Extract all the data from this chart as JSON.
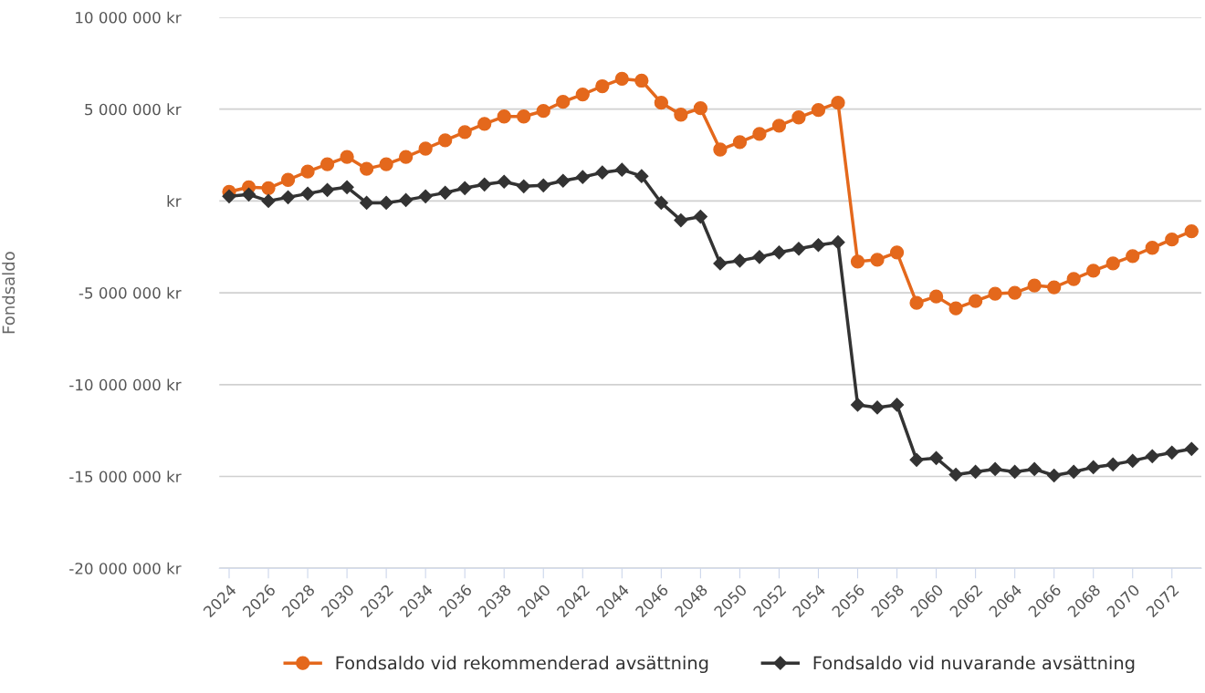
{
  "chart_data": {
    "type": "line",
    "ylabel": "Fondsaldo",
    "categories": [
      "2024",
      null,
      "2026",
      null,
      "2028",
      null,
      "2030",
      null,
      "2032",
      null,
      "2034",
      null,
      "2036",
      null,
      "2038",
      null,
      "2040",
      null,
      "2042",
      null,
      "2044",
      null,
      "2046",
      null,
      "2048",
      null,
      "2050",
      null,
      "2052",
      null,
      "2054",
      null,
      "2056",
      null,
      "2058",
      null,
      "2060",
      null,
      "2062",
      null,
      "2064",
      null,
      "2066",
      null,
      "2068",
      null,
      "2070",
      null,
      "2072",
      null
    ],
    "series": [
      {
        "name": "Fondsaldo vid rekommenderad avsättning",
        "color": "#e4681c",
        "marker": "circle",
        "values": [
          500000,
          750000,
          700000,
          1150000,
          1600000,
          2000000,
          2400000,
          1750000,
          2000000,
          2400000,
          2850000,
          3300000,
          3750000,
          4200000,
          4600000,
          4600000,
          4900000,
          5400000,
          5800000,
          6250000,
          6650000,
          6550000,
          5350000,
          4700000,
          5050000,
          2800000,
          3200000,
          3650000,
          4100000,
          4550000,
          4950000,
          5350000,
          -3300000,
          -3200000,
          -2800000,
          -5550000,
          -5200000,
          -5850000,
          -5450000,
          -5050000,
          -5000000,
          -4600000,
          -4700000,
          -4250000,
          -3800000,
          -3400000,
          -3000000,
          -2550000,
          -2100000,
          -1650000
        ]
      },
      {
        "name": "Fondsaldo vid nuvarande avsättning",
        "color": "#333333",
        "marker": "diamond",
        "values": [
          250000,
          350000,
          0,
          200000,
          400000,
          600000,
          750000,
          -100000,
          -100000,
          50000,
          250000,
          450000,
          700000,
          900000,
          1050000,
          800000,
          850000,
          1100000,
          1300000,
          1550000,
          1700000,
          1350000,
          -100000,
          -1050000,
          -850000,
          -3400000,
          -3250000,
          -3050000,
          -2800000,
          -2600000,
          -2400000,
          -2250000,
          -11100000,
          -11250000,
          -11100000,
          -14100000,
          -14000000,
          -14900000,
          -14750000,
          -14600000,
          -14750000,
          -14600000,
          -14950000,
          -14750000,
          -14500000,
          -14350000,
          -14150000,
          -13900000,
          -13700000,
          -13500000
        ]
      }
    ],
    "ylim": [
      -20000000,
      10000000
    ],
    "yticks": [
      {
        "value": -20000000,
        "label": "-20 000 000 kr"
      },
      {
        "value": -15000000,
        "label": "-15 000 000 kr"
      },
      {
        "value": -10000000,
        "label": "-10 000 000 kr"
      },
      {
        "value": -5000000,
        "label": "-5 000 000 kr"
      },
      {
        "value": 0,
        "label": "kr"
      },
      {
        "value": 5000000,
        "label": "5 000 000 kr"
      },
      {
        "value": 10000000,
        "label": "10 000 000 kr"
      }
    ],
    "grid": "y",
    "legend": "bottom",
    "line_style": "solid"
  }
}
